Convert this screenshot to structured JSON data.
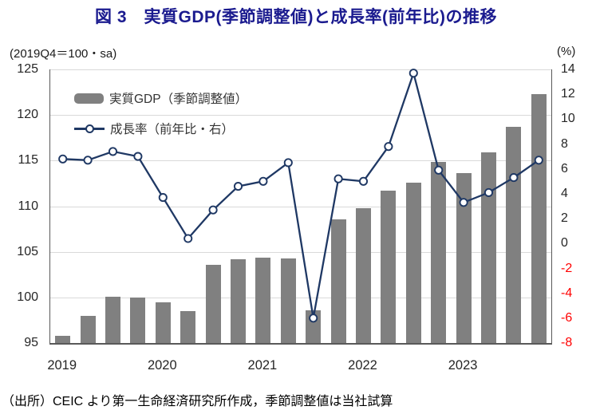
{
  "title": "図 3　実質GDP(季節調整値)と成長率(前年比)の推移",
  "left_axis_unit": "(2019Q4＝100・sa)",
  "right_axis_unit": "(%)",
  "legend": {
    "gdp_label": "実質GDP（季節調整値）",
    "growth_label": "成長率（前年比・右）"
  },
  "source_note": "（出所）CEIC より第一生命経済研究所作成，季節調整値は当社試算",
  "colors": {
    "title": "#1b1b8f",
    "bar": "#808080",
    "line": "#1f3864",
    "grid": "#d9d9d9",
    "axis": "#595959",
    "negative_tick": "#ff0000"
  },
  "chart_data": {
    "type": "combo_bar_line",
    "x": [
      "2019Q1",
      "2019Q2",
      "2019Q3",
      "2019Q4",
      "2020Q1",
      "2020Q2",
      "2020Q3",
      "2020Q4",
      "2021Q1",
      "2021Q2",
      "2021Q3",
      "2021Q4",
      "2022Q1",
      "2022Q2",
      "2022Q3",
      "2022Q4",
      "2023Q1",
      "2023Q2",
      "2023Q3",
      "2023Q4"
    ],
    "year_labels": [
      "2019",
      "2020",
      "2021",
      "2022",
      "2023"
    ],
    "year_label_indices": [
      0,
      4,
      8,
      12,
      16
    ],
    "series": [
      {
        "name": "実質GDP（季節調整値）",
        "type": "bar",
        "axis": "left",
        "color": "#808080",
        "values": [
          95.8,
          98.0,
          100.1,
          100.0,
          99.5,
          98.5,
          103.6,
          104.2,
          104.4,
          104.3,
          98.6,
          108.6,
          109.8,
          111.7,
          112.6,
          114.9,
          113.6,
          115.9,
          118.7,
          122.3
        ]
      },
      {
        "name": "成長率（前年比・右）",
        "type": "line",
        "axis": "right",
        "color": "#1f3864",
        "marker": "open-circle",
        "values": [
          6.8,
          6.7,
          7.4,
          7.0,
          3.7,
          0.4,
          2.7,
          4.6,
          5.0,
          6.5,
          -6.0,
          5.2,
          5.0,
          7.8,
          13.7,
          5.9,
          3.3,
          4.1,
          5.3,
          6.7
        ]
      }
    ],
    "left_axis": {
      "min": 95,
      "max": 125,
      "ticks": [
        125,
        120,
        115,
        110,
        105,
        100,
        95
      ]
    },
    "right_axis": {
      "min": -8,
      "max": 14,
      "ticks": [
        14,
        12,
        10,
        8,
        6,
        4,
        2,
        0,
        -2,
        -4,
        -6,
        -8
      ],
      "negative_tick_color": "#ff0000"
    },
    "grid": true,
    "legend_position": "top-left-inside"
  }
}
